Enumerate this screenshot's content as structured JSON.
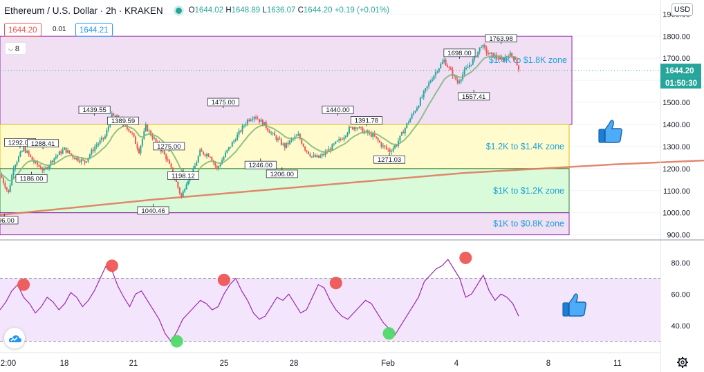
{
  "header": {
    "symbol": "Ethereum / U.S. Dollar · 2h · KRAKEN",
    "ohlc": {
      "o_label": "O",
      "o": "1644.02",
      "h_label": "H",
      "h": "1648.89",
      "l_label": "L",
      "l": "1636.07",
      "c_label": "C",
      "c": "1644.20",
      "change": "+0.19 (+0.01%)"
    },
    "bid": "1644.20",
    "spread": "0.01",
    "ask": "1644.21",
    "indicator_count": "8",
    "currency_button": "USD"
  },
  "colors": {
    "up": "#26a69a",
    "down": "#ef5350",
    "ema_fast": "#7cb67a",
    "ema_slow": "#e07a5f",
    "zone_purple": "#f0dcf3",
    "zone_yellow": "#fffbc8",
    "zone_green": "#d5fbd5",
    "rsi_line": "#9c27b0",
    "rsi_band": "#f3e5fb",
    "zone_text": "#1da1db"
  },
  "chart_data": [
    {
      "type": "candlestick",
      "title": "Ethereum / U.S. Dollar · 2h · KRAKEN",
      "price_axis": {
        "ticks": [
          "1900.00",
          "1800.00",
          "1700.00",
          "1600.00",
          "1500.00",
          "1400.00",
          "1300.00",
          "1200.00",
          "1100.00",
          "1000.00",
          "900.00"
        ],
        "ylim": [
          880,
          1920
        ],
        "current_price": "1644.20",
        "countdown": "01:50:30"
      },
      "time_axis": {
        "ticks": [
          "2:00",
          "18",
          "21",
          "25",
          "28",
          "Feb",
          "4",
          "8",
          "11"
        ]
      },
      "zones": [
        {
          "label": "$1.4K to $1.8K zone",
          "from": 1400,
          "to": 1800,
          "color": "purple"
        },
        {
          "label": "$1.2K to $1.4K zone",
          "from": 1200,
          "to": 1400,
          "color": "yellow"
        },
        {
          "label": "$1K to $1.2K zone",
          "from": 1000,
          "to": 1200,
          "color": "green"
        },
        {
          "label": "$1K to $0.8K zone",
          "from": 900,
          "to": 1000,
          "color": "purple"
        }
      ],
      "price_path": [
        [
          0,
          1175
        ],
        [
          2,
          1140
        ],
        [
          5,
          1090
        ],
        [
          8,
          1210
        ],
        [
          14,
          1292
        ],
        [
          20,
          1230
        ],
        [
          26,
          1190
        ],
        [
          32,
          1250
        ],
        [
          38,
          1288
        ],
        [
          44,
          1250
        ],
        [
          50,
          1230
        ],
        [
          56,
          1300
        ],
        [
          62,
          1345
        ],
        [
          66,
          1439.55
        ],
        [
          72,
          1420
        ],
        [
          78,
          1355
        ],
        [
          82,
          1280
        ],
        [
          86,
          1389.59
        ],
        [
          92,
          1320
        ],
        [
          98,
          1250
        ],
        [
          103,
          1160
        ],
        [
          107,
          1070
        ],
        [
          110,
          1140
        ],
        [
          114,
          1190
        ],
        [
          118,
          1275
        ],
        [
          124,
          1260
        ],
        [
          128,
          1198.12
        ],
        [
          134,
          1280
        ],
        [
          140,
          1350
        ],
        [
          146,
          1420
        ],
        [
          150,
          1440
        ],
        [
          156,
          1400
        ],
        [
          160,
          1360
        ],
        [
          164,
          1330
        ],
        [
          168,
          1300
        ],
        [
          172,
          1330
        ],
        [
          176,
          1350
        ],
        [
          180,
          1290
        ],
        [
          184,
          1255
        ],
        [
          188,
          1250
        ],
        [
          192,
          1270
        ],
        [
          196,
          1300
        ],
        [
          202,
          1340
        ],
        [
          206,
          1380
        ],
        [
          210,
          1391.78
        ],
        [
          214,
          1370
        ],
        [
          220,
          1350
        ],
        [
          226,
          1300
        ],
        [
          230,
          1280
        ],
        [
          234,
          1310
        ],
        [
          240,
          1400
        ],
        [
          246,
          1480
        ],
        [
          250,
          1540
        ],
        [
          254,
          1600
        ],
        [
          258,
          1650
        ],
        [
          262,
          1690
        ],
        [
          266,
          1640
        ],
        [
          270,
          1590
        ],
        [
          274,
          1640
        ],
        [
          280,
          1700
        ],
        [
          284,
          1760
        ],
        [
          288,
          1720
        ],
        [
          292,
          1710
        ],
        [
          296,
          1690
        ],
        [
          300,
          1720
        ],
        [
          304,
          1700
        ],
        [
          306,
          1644.2
        ]
      ],
      "price_labels": [
        {
          "text": "1292.01",
          "x": 14,
          "v": 1292
        },
        {
          "text": "1288.41",
          "x": 30,
          "v": 1288
        },
        {
          "text": "1186.00",
          "x": 22,
          "v": 1186
        },
        {
          "text": "1439.55",
          "x": 66,
          "v": 1440
        },
        {
          "text": "1389.59",
          "x": 86,
          "v": 1390
        },
        {
          "text": "1275.00",
          "x": 118,
          "v": 1275
        },
        {
          "text": "1198.12",
          "x": 128,
          "v": 1198
        },
        {
          "text": "1040.46",
          "x": 107,
          "v": 1040
        },
        {
          "text": "1475.00",
          "x": 156,
          "v": 1475
        },
        {
          "text": "1246.00",
          "x": 182,
          "v": 1246
        },
        {
          "text": "1206.00",
          "x": 197,
          "v": 1206
        },
        {
          "text": "1440.00",
          "x": 236,
          "v": 1440
        },
        {
          "text": "1391.78",
          "x": 256,
          "v": 1392
        },
        {
          "text": "1271.03",
          "x": 272,
          "v": 1271
        },
        {
          "text": "1698.00",
          "x": 321,
          "v": 1698
        },
        {
          "text": "1557.41",
          "x": 331,
          "v": 1557
        },
        {
          "text": "1763.98",
          "x": 350,
          "v": 1764
        },
        {
          "text": "996.00",
          "x": 3,
          "v": 996
        }
      ],
      "ema_slow": [
        [
          0,
          990
        ],
        [
          40,
          1060
        ],
        [
          80,
          1120
        ],
        [
          120,
          1180
        ],
        [
          160,
          1220
        ],
        [
          200,
          1250
        ],
        [
          240,
          1290
        ],
        [
          270,
          1330
        ],
        [
          300,
          1400
        ],
        [
          320,
          1440
        ]
      ]
    },
    {
      "type": "line",
      "title": "RSI",
      "ylim": [
        25,
        90
      ],
      "y_ticks": [
        "80.00",
        "60.00",
        "40.00"
      ],
      "band": [
        30,
        70
      ],
      "series": [
        {
          "values": [
            50,
            55,
            62,
            66,
            58,
            54,
            48,
            52,
            58,
            55,
            50,
            54,
            61,
            58,
            52,
            56,
            62,
            70,
            78,
            75,
            65,
            58,
            52,
            60,
            62,
            56,
            50,
            44,
            35,
            30,
            36,
            44,
            48,
            52,
            56,
            54,
            50,
            52,
            60,
            66,
            70,
            62,
            56,
            48,
            44,
            46,
            52,
            58,
            56,
            60,
            54,
            48,
            50,
            58,
            66,
            64,
            56,
            50,
            46,
            44,
            48,
            52,
            56,
            54,
            48,
            42,
            38,
            34,
            40,
            46,
            52,
            58,
            68,
            72,
            76,
            78,
            82,
            76,
            70,
            58,
            60,
            66,
            72,
            62,
            56,
            60,
            58,
            54,
            46
          ]
        }
      ],
      "overbought_markers": [
        [
          4,
          66
        ],
        [
          19,
          78
        ],
        [
          38,
          69
        ],
        [
          57,
          67
        ],
        [
          79,
          83
        ]
      ],
      "oversold_markers": [
        [
          30,
          30
        ],
        [
          66,
          35
        ]
      ]
    }
  ]
}
